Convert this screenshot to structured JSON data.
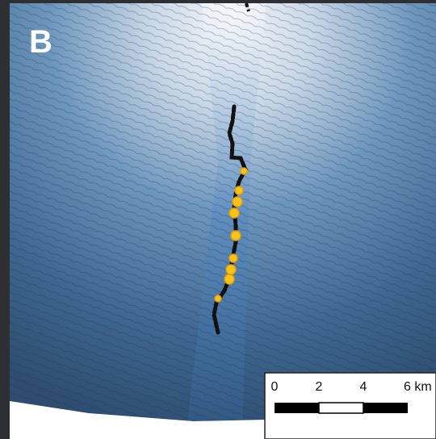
{
  "panel_label": "B",
  "scale_bar": {
    "labels": [
      "0",
      "2",
      "4",
      "6 km"
    ]
  }
}
